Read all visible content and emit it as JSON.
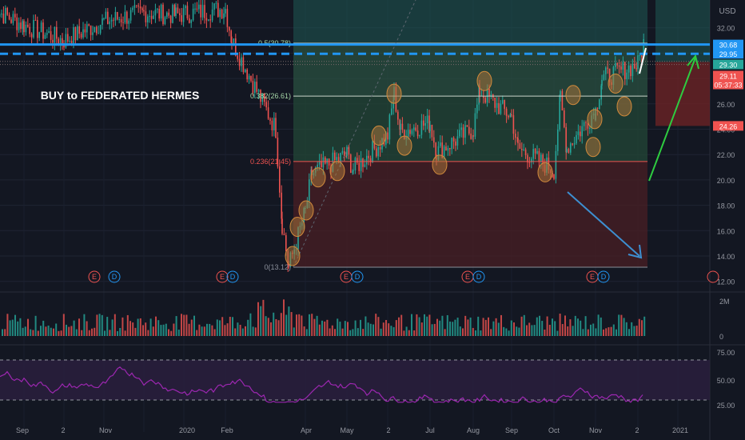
{
  "chart": {
    "annotation": "BUY to FEDERATED HERMES",
    "currency": "USD",
    "x_labels": [
      "Sep",
      "2",
      "Nov",
      "2020",
      "Feb",
      "Apr",
      "May",
      "2",
      "Jul",
      "Aug",
      "Sep",
      "Oct",
      "Nov",
      "2",
      "2021"
    ],
    "earnings_markers": [
      [
        "E",
        "D"
      ],
      [
        "E",
        "D"
      ],
      [
        "E",
        "D"
      ],
      [
        "E",
        "D"
      ],
      [
        "E",
        "D"
      ]
    ]
  },
  "price_axis": {
    "ticks": [
      "32.00",
      "30.00",
      "28.00",
      "26.00",
      "24.00",
      "22.00",
      "20.00",
      "18.00",
      "16.00",
      "14.00",
      "12.00"
    ]
  },
  "price_tags": [
    {
      "label": "30.68",
      "color": "#2196f3"
    },
    {
      "label": "29.95",
      "color": "#2196f3"
    },
    {
      "label": "29.30",
      "color": "#26a69a"
    },
    {
      "label": "29.11",
      "color": "#ef5350"
    },
    {
      "label": "05:37:33",
      "color": "#ef5350"
    },
    {
      "label": "24.26",
      "color": "#ef5350"
    }
  ],
  "volume_axis": {
    "ticks": [
      "2M",
      "0"
    ]
  },
  "rsi_axis": {
    "ticks": [
      "75.00",
      "50.00",
      "25.00"
    ]
  },
  "colors": {
    "background": "#131722",
    "up": "#26a69a",
    "down": "#ef5350",
    "resistance": "#2196f3",
    "rsi": "#9c27b0",
    "fib_zone_green": "#26a69a",
    "fib_zone_red": "#ef5350"
  },
  "chart_data": {
    "type": "candlestick",
    "title": "",
    "x_axis_labels": [
      "Sep",
      "2",
      "Nov",
      "2020",
      "Feb",
      "Apr",
      "May",
      "2",
      "Jul",
      "Aug",
      "Sep",
      "Oct",
      "Nov",
      "2",
      "2021"
    ],
    "y_range": [
      12,
      33
    ],
    "fibonacci_levels": [
      {
        "label": "0.5(30.78)",
        "ratio": 0.5,
        "value": 30.78
      },
      {
        "label": "0.382(26.61)",
        "ratio": 0.382,
        "value": 26.61
      },
      {
        "label": "0.236(21.45)",
        "ratio": 0.236,
        "value": 21.45
      },
      {
        "label": "0(13.12)",
        "ratio": 0,
        "value": 13.12
      }
    ],
    "horizontal_lines": [
      {
        "value": 30.68,
        "style": "solid"
      },
      {
        "value": 29.95,
        "style": "dashed"
      }
    ],
    "price_path": [
      [
        "Aug 2019",
        33.5
      ],
      [
        "Sep",
        32.2
      ],
      [
        "Oct",
        31.0
      ],
      [
        "Nov",
        32.5
      ],
      [
        "Dec",
        33.2
      ],
      [
        "Jan 2020",
        33.0
      ],
      [
        "Feb",
        33.5
      ],
      [
        "Feb",
        31.0
      ],
      [
        "Mar",
        24.0
      ],
      [
        "Mar",
        16.5
      ],
      [
        "Mar",
        13.12
      ],
      [
        "Apr",
        17.5
      ],
      [
        "Apr",
        20.5
      ],
      [
        "May",
        22.0
      ],
      [
        "May",
        20.8
      ],
      [
        "Jun",
        23.5
      ],
      [
        "Jun",
        26.8
      ],
      [
        "Jun",
        23.8
      ],
      [
        "Jul",
        24.5
      ],
      [
        "Jul",
        22.2
      ],
      [
        "Aug",
        24.0
      ],
      [
        "Aug",
        27.0
      ],
      [
        "Sep",
        25.0
      ],
      [
        "Sep",
        22.5
      ],
      [
        "Oct",
        20.8
      ],
      [
        "Oct",
        26.5
      ],
      [
        "Oct",
        22.5
      ],
      [
        "Nov",
        25.5
      ],
      [
        "Nov",
        28.0
      ],
      [
        "Dec",
        29.11
      ],
      [
        "Dec",
        31.0
      ]
    ],
    "volume_range": [
      0,
      2000000
    ],
    "rsi": {
      "levels": [
        70,
        30
      ],
      "range": [
        20,
        80
      ]
    }
  }
}
